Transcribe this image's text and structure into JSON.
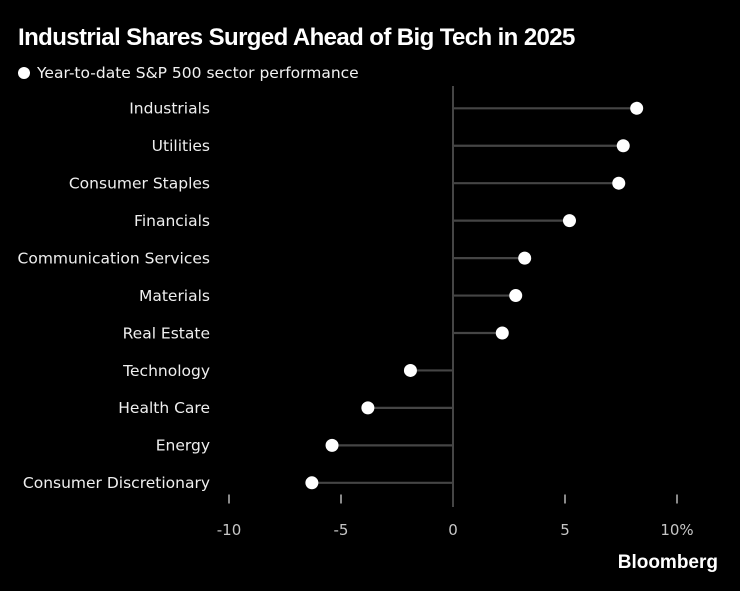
{
  "header": {
    "title": "Industrial Shares Surged Ahead of Big Tech in 2025",
    "subtitle": "Year-to-date S&P 500 sector performance",
    "legend_marker": "dot"
  },
  "chart_data": {
    "type": "scatter",
    "variant": "horizontal-lollipop",
    "title": "Industrial Shares Surged Ahead of Big Tech in 2025",
    "subtitle": "Year-to-date S&P 500 sector performance",
    "unit": "%",
    "categories": [
      "Industrials",
      "Utilities",
      "Consumer Staples",
      "Financials",
      "Communication Services",
      "Materials",
      "Real Estate",
      "Technology",
      "Health Care",
      "Energy",
      "Consumer Discretionary"
    ],
    "values": [
      8.2,
      7.6,
      7.4,
      5.2,
      3.2,
      2.8,
      2.2,
      -1.9,
      -3.8,
      -5.4,
      -6.3
    ],
    "baseline": 0,
    "xticks": [
      -10,
      -5,
      0,
      5,
      10
    ],
    "xtick_labels": [
      "-10",
      "-5",
      "0",
      "5",
      "10%"
    ],
    "xlim": [
      -12.5,
      12.8
    ],
    "grid": false,
    "legend_position": "none",
    "xlabel": "",
    "ylabel": ""
  },
  "footer": {
    "brand": "Bloomberg"
  },
  "colors": {
    "background": "#000000",
    "title": "#ffffff",
    "subtitle": "#f2f2f2",
    "category_label": "#efefef",
    "tick_label": "#c6c6c6",
    "stem": "#454545",
    "axis_line": "#454545",
    "tick_mark": "#b8b8b8",
    "dot": "#ffffff"
  }
}
